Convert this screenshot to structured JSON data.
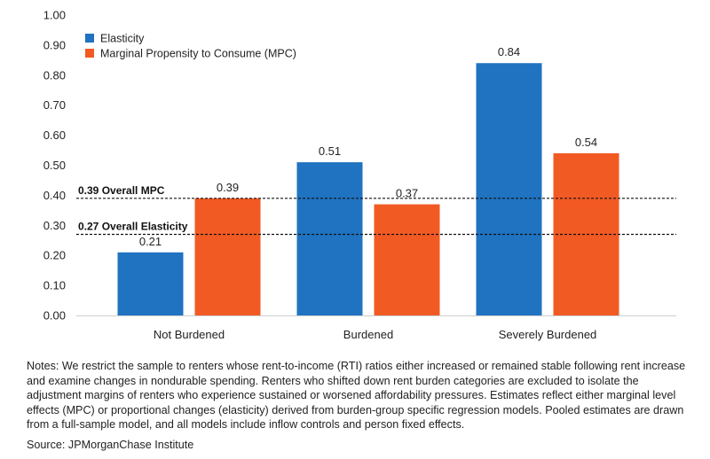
{
  "chart_data": {
    "type": "bar",
    "title": "",
    "xlabel": "",
    "ylabel": "",
    "categories": [
      "Not Burdened",
      "Burdened",
      "Severely Burdened"
    ],
    "series": [
      {
        "name": "Elasticity",
        "values": [
          0.21,
          0.51,
          0.84
        ],
        "labels": [
          "0.21",
          "0.51",
          "0.84"
        ],
        "color": "#1f73c1"
      },
      {
        "name": "Marginal Propensity to Consume (MPC)",
        "values": [
          0.39,
          0.37,
          0.54
        ],
        "labels": [
          "0.39",
          "0.37",
          "0.54"
        ],
        "color": "#f25a24"
      }
    ],
    "ylim": [
      0,
      1
    ],
    "yticks": [
      "0.00",
      "0.10",
      "0.20",
      "0.30",
      "0.40",
      "0.50",
      "0.60",
      "0.70",
      "0.80",
      "0.90",
      "1.00"
    ],
    "reference_lines": [
      {
        "label": "0.39 Overall MPC",
        "value": 0.39
      },
      {
        "label": "0.27 Overall Elasticity",
        "value": 0.27
      }
    ],
    "legend_position": "top-left",
    "grid": false
  },
  "notes": "Notes: We restrict the sample to renters whose rent-to-income (RTI) ratios either increased or remained stable following rent increase and examine changes in nondurable spending. Renters who shifted down rent burden categories are excluded to isolate the adjustment margins of renters who experience sustained or worsened affordability pressures. Estimates reflect either marginal level effects (MPC) or proportional changes (elasticity) derived from burden-group specific regression models. Pooled estimates are drawn from a full-sample model, and all models include inflow controls and person fixed effects.",
  "source": "Source: JPMorganChase Institute"
}
